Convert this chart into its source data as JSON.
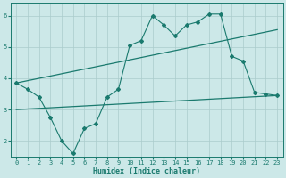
{
  "bg_color": "#cce8e8",
  "grid_color": "#aacccc",
  "line_color": "#1a7a6e",
  "xlabel": "Humidex (Indice chaleur)",
  "xlim": [
    -0.5,
    23.5
  ],
  "ylim": [
    1.5,
    6.4
  ],
  "yticks": [
    2,
    3,
    4,
    5,
    6
  ],
  "xticks": [
    0,
    1,
    2,
    3,
    4,
    5,
    6,
    7,
    8,
    9,
    10,
    11,
    12,
    13,
    14,
    15,
    16,
    17,
    18,
    19,
    20,
    21,
    22,
    23
  ],
  "upper_trend_x": [
    0,
    23
  ],
  "upper_trend_y": [
    3.85,
    5.55
  ],
  "lower_trend_x": [
    0,
    23
  ],
  "lower_trend_y": [
    3.0,
    3.45
  ],
  "zigzag_x": [
    0,
    1,
    2,
    3,
    4,
    5,
    6,
    7,
    8,
    9,
    10,
    11,
    12,
    13,
    14,
    15,
    16,
    17,
    18,
    19,
    20,
    21,
    22,
    23
  ],
  "zigzag_y": [
    3.85,
    3.65,
    3.4,
    2.75,
    2.0,
    1.6,
    2.4,
    2.55,
    3.4,
    3.65,
    5.05,
    5.2,
    6.0,
    5.7,
    5.35,
    5.7,
    5.8,
    6.05,
    6.05,
    4.7,
    4.55,
    3.55,
    3.5,
    3.45
  ]
}
